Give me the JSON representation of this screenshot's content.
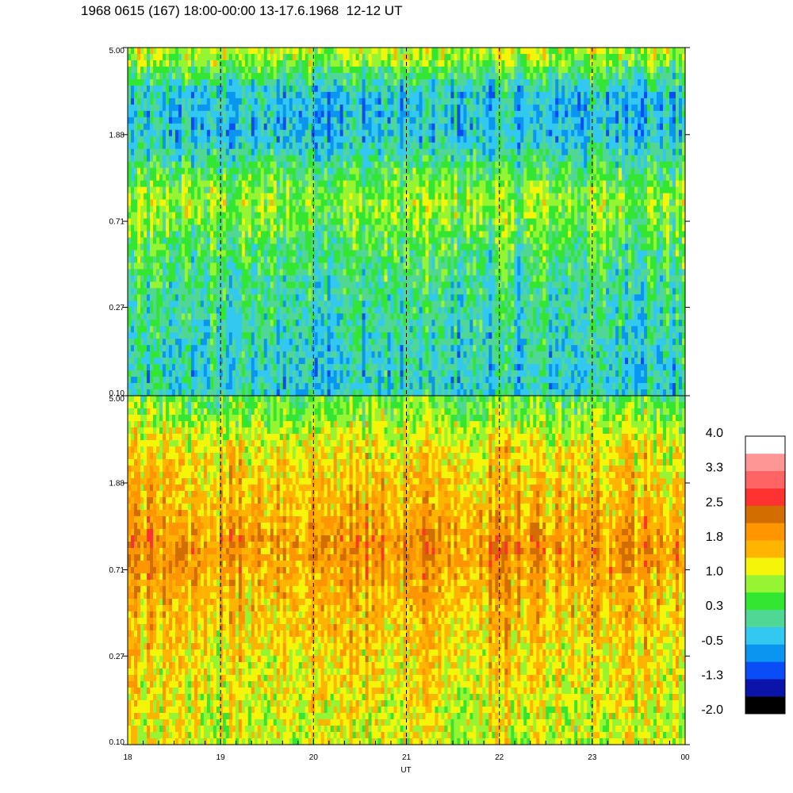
{
  "title": "1968 0615 (167) 18:00-00:00 13-17.6.1968  12-12 UT",
  "chart_data": {
    "type": "heatmap",
    "xlabel": "UT",
    "x_ticks": [
      "18",
      "19",
      "20",
      "21",
      "22",
      "23",
      "00"
    ],
    "x_range_hours": [
      18,
      24
    ],
    "dashed_hour_lines": [
      19,
      20,
      21,
      22,
      23
    ],
    "y_scale": "log",
    "y_range": [
      0.1,
      5.0
    ],
    "panels": [
      {
        "name": "top",
        "y_ticks": [
          "5.00",
          "1.88",
          "0.71",
          "0.27",
          "0.10"
        ],
        "approx_level_profile": [
          {
            "y": 4.6,
            "value": 0.9
          },
          {
            "y": 3.0,
            "value": -0.3
          },
          {
            "y": 1.88,
            "value": -0.4
          },
          {
            "y": 1.2,
            "value": 0.4
          },
          {
            "y": 0.9,
            "value": 0.8
          },
          {
            "y": 0.5,
            "value": 0.3
          },
          {
            "y": 0.27,
            "value": 0.0
          },
          {
            "y": 0.12,
            "value": -0.2
          }
        ]
      },
      {
        "name": "bottom",
        "y_ticks": [
          "5.00",
          "1.88",
          "0.71",
          "0.27",
          "0.10"
        ],
        "approx_level_profile": [
          {
            "y": 4.5,
            "value": 0.6
          },
          {
            "y": 2.8,
            "value": 1.3
          },
          {
            "y": 1.5,
            "value": 1.6
          },
          {
            "y": 0.9,
            "value": 2.0
          },
          {
            "y": 0.6,
            "value": 1.7
          },
          {
            "y": 0.3,
            "value": 1.4
          },
          {
            "y": 0.12,
            "value": 1.1
          }
        ]
      }
    ],
    "colorbar": {
      "tick_labels": [
        "4.0",
        "3.3",
        "2.5",
        "1.8",
        "1.0",
        "0.3",
        "-0.5",
        "-1.3",
        "-2.0"
      ],
      "range": [
        -2.0,
        4.0
      ],
      "colors_bottom_to_top": [
        "#000000",
        "#0a14a8",
        "#0a4cf5",
        "#0a96f0",
        "#32c8f0",
        "#50d796",
        "#32e632",
        "#96f532",
        "#f5f50a",
        "#ffb400",
        "#ff9600",
        "#d26e00",
        "#ff3232",
        "#ff6464",
        "#ff9696",
        "#ffffff"
      ]
    }
  }
}
